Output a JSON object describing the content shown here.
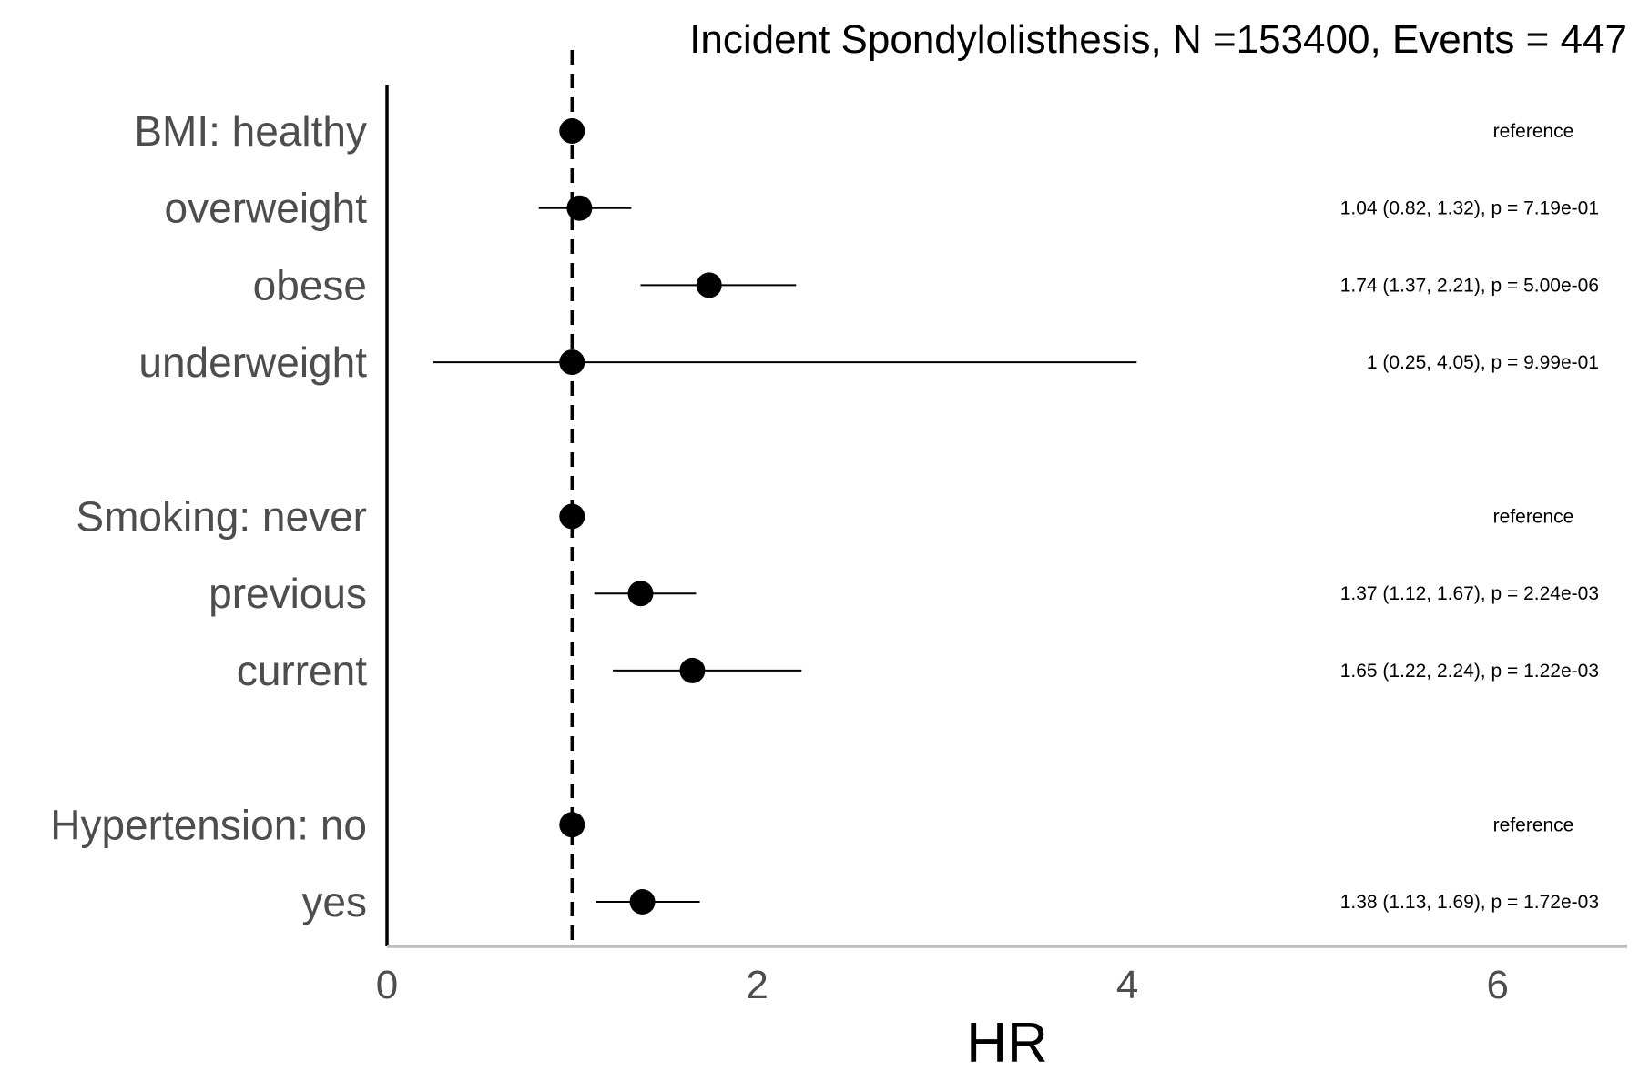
{
  "chart_data": {
    "type": "scatter",
    "subtype": "forest-plot",
    "title": "Incident Spondylolisthesis, N =153400, Events = 447",
    "xlabel": "HR",
    "ylabel": "",
    "xlim": [
      0,
      6.7
    ],
    "x_ticks": [
      0,
      2,
      4,
      6
    ],
    "x_tick_labels": [
      "0",
      "2",
      "4",
      "6"
    ],
    "reference_line": 1,
    "grid": false,
    "legend": "none",
    "groups": [
      {
        "rows": [
          {
            "label": "BMI: healthy",
            "hr": 1,
            "lower": null,
            "upper": null,
            "annotation": "reference"
          },
          {
            "label": "overweight",
            "hr": 1.04,
            "lower": 0.82,
            "upper": 1.32,
            "annotation": "1.04 (0.82, 1.32), p = 7.19e-01"
          },
          {
            "label": "obese",
            "hr": 1.74,
            "lower": 1.37,
            "upper": 2.21,
            "annotation": "1.74 (1.37, 2.21), p = 5.00e-06"
          },
          {
            "label": "underweight",
            "hr": 1,
            "lower": 0.25,
            "upper": 4.05,
            "annotation": "1 (0.25, 4.05), p = 9.99e-01"
          }
        ]
      },
      {
        "rows": [
          {
            "label": "Smoking: never",
            "hr": 1,
            "lower": null,
            "upper": null,
            "annotation": "reference"
          },
          {
            "label": "previous",
            "hr": 1.37,
            "lower": 1.12,
            "upper": 1.67,
            "annotation": "1.37 (1.12, 1.67), p = 2.24e-03"
          },
          {
            "label": "current",
            "hr": 1.65,
            "lower": 1.22,
            "upper": 2.24,
            "annotation": "1.65 (1.22, 2.24), p = 1.22e-03"
          }
        ]
      },
      {
        "rows": [
          {
            "label": "Hypertension: no",
            "hr": 1,
            "lower": null,
            "upper": null,
            "annotation": "reference"
          },
          {
            "label": "yes",
            "hr": 1.38,
            "lower": 1.13,
            "upper": 1.69,
            "annotation": "1.38 (1.13, 1.69), p = 1.72e-03"
          }
        ]
      }
    ],
    "colors": {
      "point": "#000000",
      "ci_line": "#000000",
      "reference_line": "#000000",
      "y_axis_line": "#000000",
      "x_axis_line": "#bdbdbd",
      "label_text": "#4d4d4d"
    }
  }
}
